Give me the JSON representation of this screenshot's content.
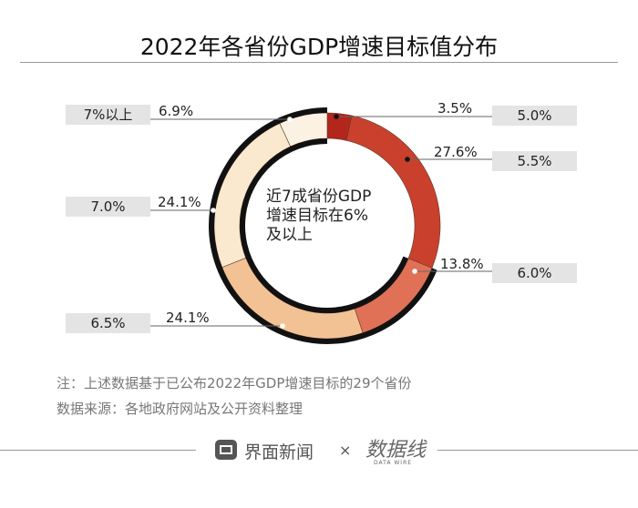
{
  "title": "2022年各省份GDP增速目标值分布",
  "center_text": [
    "近7成省份GDP",
    "增速目标在6%",
    "及以上"
  ],
  "notes": [
    "注：上述数据基于已公布2022年GDP增速目标的29个省份",
    "数据来源：各地政府网站及公开资料整理"
  ],
  "footer": {
    "brand": "界面新闻",
    "times": "×",
    "partner": "数据线",
    "partner_sub": "DATA WIRE"
  },
  "chart_data": {
    "type": "pie",
    "donut": true,
    "title": "2022年各省份GDP增速目标值分布",
    "categories": [
      "5.0%",
      "5.5%",
      "6.0%",
      "6.5%",
      "7.0%",
      "7%以上"
    ],
    "values": [
      3.5,
      27.6,
      13.8,
      24.1,
      24.1,
      6.9
    ],
    "value_labels": [
      "3.5%",
      "27.6%",
      "13.8%",
      "24.1%",
      "24.1%",
      "6.9%"
    ],
    "colors": [
      "#b3261c",
      "#c9402d",
      "#e07157",
      "#f3c294",
      "#fae8cf",
      "#fcf2e4"
    ],
    "highlight": "6%及以上",
    "highlight_color": "#111111"
  }
}
